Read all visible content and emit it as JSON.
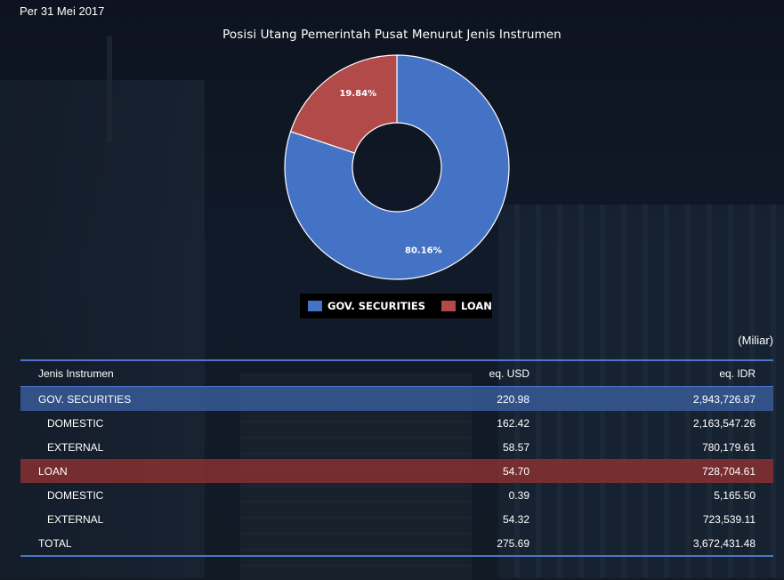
{
  "header": {
    "date": "Per 31 Mei 2017"
  },
  "colors": {
    "gov_securities": "#4472c4",
    "loan": "#b24a4a",
    "table_rule": "#4d74c7"
  },
  "chart_data": {
    "type": "pie",
    "title": "Posisi Utang Pemerintah Pusat Menurut Jenis Instrumen",
    "slices": [
      {
        "name": "GOV. SECURITIES",
        "percent": 80.16,
        "label": "80.16%",
        "color": "#4472c4"
      },
      {
        "name": "LOAN",
        "percent": 19.84,
        "label": "19.84%",
        "color": "#b24a4a"
      }
    ],
    "legend": [
      "GOV. SECURITIES",
      "LOAN"
    ],
    "legend_position": "bottom"
  },
  "table": {
    "unit_note": "(Miliar)",
    "headers": {
      "instrument": "Jenis Instrumen",
      "usd": "eq. USD",
      "idr": "eq. IDR"
    },
    "rows": [
      {
        "instrument": "GOV. SECURITIES",
        "usd": "220.98",
        "idr": "2,943,726.87"
      },
      {
        "instrument": "DOMESTIC",
        "usd": "162.42",
        "idr": "2,163,547.26"
      },
      {
        "instrument": "EXTERNAL",
        "usd": "58.57",
        "idr": "780,179.61"
      },
      {
        "instrument": "LOAN",
        "usd": "54.70",
        "idr": "728,704.61"
      },
      {
        "instrument": "DOMESTIC",
        "usd": "0.39",
        "idr": "5,165.50"
      },
      {
        "instrument": "EXTERNAL",
        "usd": "54.32",
        "idr": "723,539.11"
      },
      {
        "instrument": "TOTAL",
        "usd": "275.69",
        "idr": "3,672,431.48"
      }
    ]
  }
}
